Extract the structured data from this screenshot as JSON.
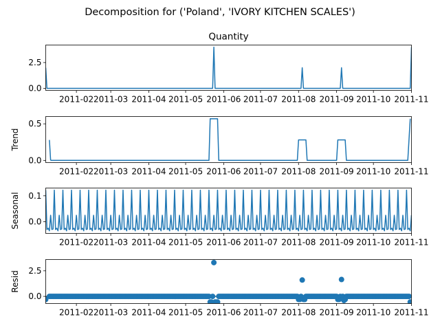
{
  "figure": {
    "suptitle": "Decomposition for ('Poland', 'IVORY KITCHEN SCALES')"
  },
  "x_axis": {
    "start": "2011-01-07",
    "end": "2011-11-01",
    "ticks": [
      "2011-02",
      "2011-03",
      "2011-04",
      "2011-05",
      "2011-06",
      "2011-07",
      "2011-08",
      "2011-09",
      "2011-10",
      "2011-11"
    ],
    "tick_dates": [
      "2011-02-01",
      "2011-03-01",
      "2011-04-01",
      "2011-05-01",
      "2011-06-01",
      "2011-07-01",
      "2011-08-01",
      "2011-09-01",
      "2011-10-01",
      "2011-11-01"
    ]
  },
  "colors": {
    "series": "#1f77b4"
  },
  "chart_data": [
    {
      "type": "line",
      "title": "Quantity",
      "ylabel": "",
      "ylim": [
        -0.2,
        4.2
      ],
      "yticks": [
        "0.0",
        "2.5"
      ],
      "ytick_values": [
        0,
        2.5
      ],
      "spikes": [
        {
          "x": "2011-01-07",
          "y": 2
        },
        {
          "x": "2011-05-24",
          "y": 4
        },
        {
          "x": "2011-08-04",
          "y": 2
        },
        {
          "x": "2011-09-05",
          "y": 2
        },
        {
          "x": "2011-11-01",
          "y": 4
        }
      ]
    },
    {
      "type": "line",
      "title": "",
      "ylabel": "Trend",
      "ylim": [
        -0.03,
        0.6
      ],
      "yticks": [
        "0.0",
        "0.5"
      ],
      "ytick_values": [
        0,
        0.5
      ],
      "segments": [
        [
          [
            "2011-01-10",
            0.28
          ],
          [
            "2011-01-11",
            0
          ]
        ],
        [
          [
            "2011-01-11",
            0
          ],
          [
            "2011-05-20",
            0
          ],
          [
            "2011-05-21",
            0.57
          ],
          [
            "2011-05-27",
            0.57
          ],
          [
            "2011-05-28",
            0
          ],
          [
            "2011-07-31",
            0
          ],
          [
            "2011-08-01",
            0.28
          ],
          [
            "2011-08-07",
            0.28
          ],
          [
            "2011-08-08",
            0
          ],
          [
            "2011-09-01",
            0
          ],
          [
            "2011-09-02",
            0.28
          ],
          [
            "2011-09-08",
            0.28
          ],
          [
            "2011-09-09",
            0
          ],
          [
            "2011-10-29",
            0
          ],
          [
            "2011-10-31",
            0.57
          ]
        ]
      ]
    },
    {
      "type": "line",
      "title": "",
      "ylabel": "Seasonal",
      "ylim": [
        -0.045,
        0.13
      ],
      "yticks": [
        "0.0",
        "0.1"
      ],
      "ytick_values": [
        0,
        0.1
      ],
      "period_days": 7,
      "pattern": [
        0.122,
        -0.03,
        -0.025,
        -0.035,
        0.025,
        -0.03,
        -0.028
      ]
    },
    {
      "type": "scatter",
      "title": "",
      "ylabel": "Resid",
      "ylim": [
        -0.7,
        3.6
      ],
      "yticks": [
        "0.0",
        "2.5"
      ],
      "ytick_values": [
        0,
        2.5
      ],
      "baseline": 0,
      "outliers": [
        {
          "x": "2011-01-07",
          "y": -0.3
        },
        {
          "x": "2011-05-21",
          "y": -0.55
        },
        {
          "x": "2011-05-22",
          "y": -0.55
        },
        {
          "x": "2011-05-24",
          "y": 3.3
        },
        {
          "x": "2011-05-25",
          "y": -0.55
        },
        {
          "x": "2011-05-26",
          "y": -0.55
        },
        {
          "x": "2011-05-27",
          "y": -0.55
        },
        {
          "x": "2011-08-01",
          "y": -0.3
        },
        {
          "x": "2011-08-02",
          "y": -0.3
        },
        {
          "x": "2011-08-04",
          "y": 1.6
        },
        {
          "x": "2011-08-05",
          "y": -0.3
        },
        {
          "x": "2011-08-06",
          "y": -0.3
        },
        {
          "x": "2011-09-02",
          "y": -0.3
        },
        {
          "x": "2011-09-03",
          "y": -0.3
        },
        {
          "x": "2011-09-05",
          "y": 1.65
        },
        {
          "x": "2011-09-07",
          "y": -0.4
        },
        {
          "x": "2011-09-08",
          "y": -0.3
        },
        {
          "x": "2011-10-31",
          "y": -0.55
        }
      ]
    }
  ]
}
